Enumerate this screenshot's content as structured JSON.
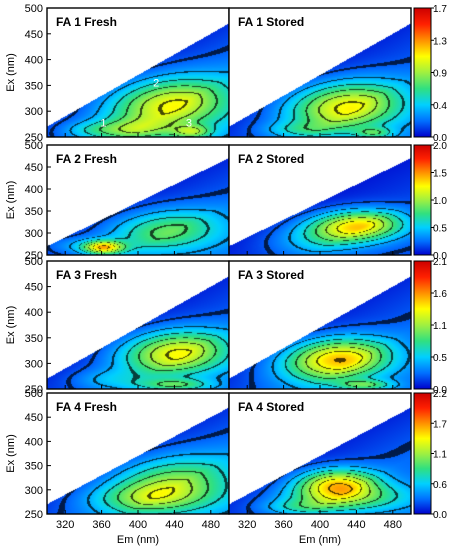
{
  "chart_data": {
    "type": "heatmap",
    "description": "2D excitation-emission fluorescence matrices (contour maps) for four samples, fresh vs stored",
    "xlabel": "Em (nm)",
    "ylabel": "Ex (nm)",
    "xlim": [
      300,
      500
    ],
    "ylim": [
      250,
      500
    ],
    "x_ticks": [
      "320",
      "360",
      "400",
      "440",
      "480"
    ],
    "y_ticks": [
      "250",
      "300",
      "350",
      "400",
      "450",
      "500"
    ],
    "colormap": [
      "#0000cc",
      "#0070ff",
      "#00d0ff",
      "#30e080",
      "#a0f040",
      "#ffff00",
      "#ff9000",
      "#ff2000",
      "#cc0000"
    ],
    "rows": [
      {
        "colorbar_ticks": [
          "0.0",
          "0.4",
          "0.9",
          "1.3",
          "1.7"
        ],
        "colorbar_max": 1.7,
        "panels": [
          {
            "title": "FA 1 Fresh",
            "peak_labels": [
              "1",
              "2",
              "3"
            ]
          },
          {
            "title": "FA 1 Stored",
            "peak_labels": []
          }
        ]
      },
      {
        "colorbar_ticks": [
          "0.0",
          "0.5",
          "1.0",
          "1.5",
          "2.0"
        ],
        "colorbar_max": 2.0,
        "panels": [
          {
            "title": "FA 2 Fresh",
            "peak_labels": []
          },
          {
            "title": "FA 2 Stored",
            "peak_labels": []
          }
        ]
      },
      {
        "colorbar_ticks": [
          "0.0",
          "0.5",
          "1.1",
          "1.6",
          "2.1"
        ],
        "colorbar_max": 2.1,
        "panels": [
          {
            "title": "FA 3 Fresh",
            "peak_labels": []
          },
          {
            "title": "FA 3 Stored",
            "peak_labels": []
          }
        ]
      },
      {
        "colorbar_ticks": [
          "0.0",
          "0.6",
          "1.1",
          "1.7",
          "2.2"
        ],
        "colorbar_max": 2.2,
        "panels": [
          {
            "title": "FA 4 Fresh",
            "peak_labels": []
          },
          {
            "title": "FA 4 Stored",
            "peak_labels": []
          }
        ]
      }
    ]
  }
}
